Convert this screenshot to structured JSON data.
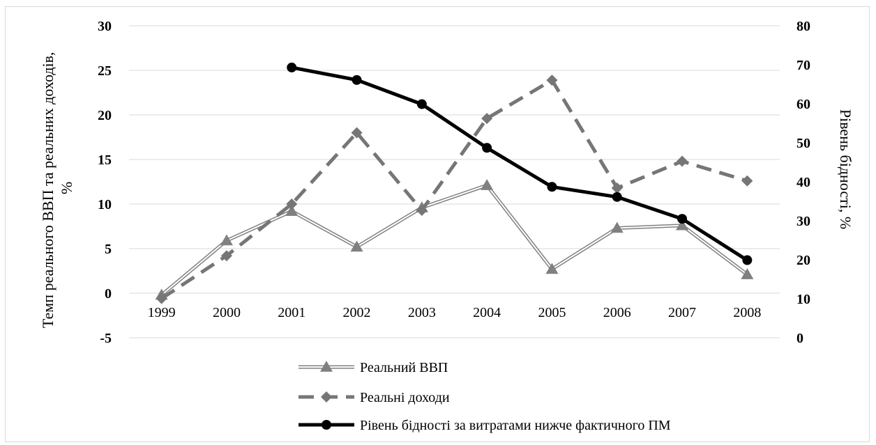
{
  "chart_data": {
    "type": "line",
    "categories": [
      "1999",
      "2000",
      "2001",
      "2002",
      "2003",
      "2004",
      "2005",
      "2006",
      "2007",
      "2008"
    ],
    "y_left": {
      "label_line1": "Темп реального ВВП та реальних доходів,",
      "label_line2": "%",
      "ticks": [
        "30",
        "25",
        "20",
        "15",
        "10",
        "5",
        "0",
        "-5"
      ],
      "range": [
        -5,
        30
      ]
    },
    "y_right": {
      "label": "Рівень бідності, %",
      "ticks": [
        "80",
        "70",
        "60",
        "50",
        "40",
        "30",
        "20",
        "10",
        "0"
      ],
      "range": [
        0,
        80
      ]
    },
    "gridlines": true,
    "legend_position": "bottom",
    "series": [
      {
        "name": "Реальний ВВП",
        "axis": "left",
        "style": "double-line-triangle",
        "color": "#808080",
        "values": [
          -0.2,
          5.9,
          9.2,
          5.2,
          9.6,
          12.1,
          2.7,
          7.3,
          7.6,
          2.1
        ]
      },
      {
        "name": "Реальні доходи",
        "axis": "left",
        "style": "dashed-diamond",
        "color": "#767676",
        "values": [
          -0.6,
          4.2,
          10.0,
          18.0,
          9.3,
          19.6,
          23.9,
          11.8,
          14.8,
          12.6
        ]
      },
      {
        "name": "Рівень бідності за витратами нижче фактичного ПМ",
        "axis": "right",
        "style": "solid-circle",
        "color": "#000000",
        "values": [
          null,
          null,
          69.3,
          66.1,
          59.9,
          48.7,
          38.7,
          36.1,
          30.5,
          19.9
        ]
      }
    ]
  }
}
